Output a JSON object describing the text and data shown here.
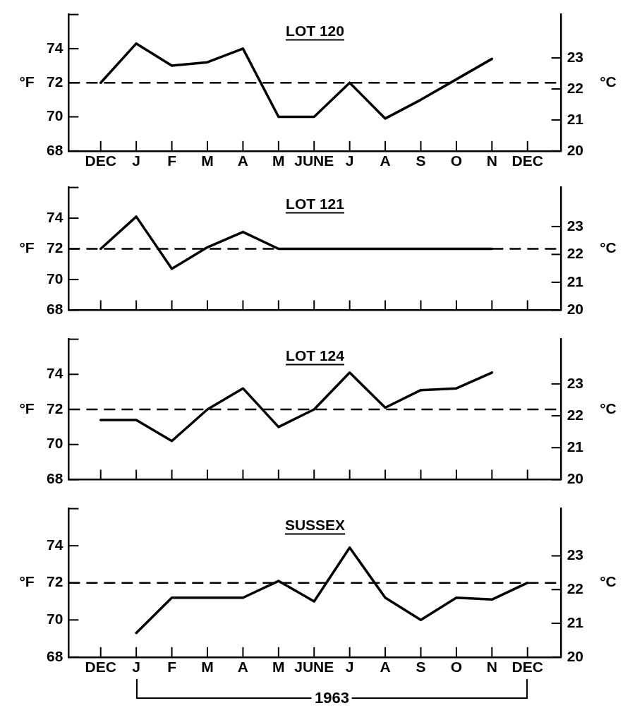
{
  "chart_data": [
    {
      "type": "line",
      "title": "LOT 120",
      "ylabel": "°F",
      "y2label": "°C",
      "categories": [
        "DEC",
        "J",
        "F",
        "M",
        "A",
        "M",
        "JUNE",
        "J",
        "A",
        "S",
        "O",
        "N",
        "DEC"
      ],
      "series": [
        {
          "color": "#000000",
          "values": [
            72,
            74.3,
            73.0,
            73.2,
            74.0,
            70.0,
            70.0,
            72.0,
            69.9,
            71.0,
            72.2,
            73.4,
            null
          ]
        }
      ],
      "ylim": [
        68,
        76
      ],
      "yticks": [
        68,
        70,
        72,
        74
      ],
      "y2lim": [
        20,
        24.4
      ],
      "y2ticks": [
        20,
        21,
        22,
        23
      ],
      "ref_lines": [
        {
          "axis": "y",
          "value": 72,
          "line_style": "dashed",
          "color": "#000000"
        }
      ],
      "marker": "none",
      "line_style": "solid",
      "grid": false,
      "legend": false
    },
    {
      "type": "line",
      "title": "LOT 121",
      "ylabel": "°F",
      "y2label": "°C",
      "categories": [
        null,
        null,
        null,
        null,
        null,
        null,
        null,
        null,
        null,
        null,
        null,
        null,
        null
      ],
      "series": [
        {
          "color": "#000000",
          "values": [
            72,
            74.1,
            70.7,
            72.1,
            73.1,
            72.0,
            72.0,
            72.0,
            72.0,
            72.0,
            72.0,
            72.0,
            null
          ]
        }
      ],
      "ylim": [
        68,
        76
      ],
      "yticks": [
        68,
        70,
        72,
        74
      ],
      "y2lim": [
        20,
        24.4
      ],
      "y2ticks": [
        20,
        21,
        22,
        23
      ],
      "tick_labels": "y",
      "ref_lines": [
        {
          "axis": "y",
          "value": 72,
          "line_style": "dashed",
          "color": "#000000"
        }
      ],
      "marker": "none",
      "line_style": "solid",
      "grid": false,
      "legend": false
    },
    {
      "type": "line",
      "title": "LOT 124",
      "ylabel": "°F",
      "y2label": "°C",
      "categories": [
        null,
        null,
        null,
        null,
        null,
        null,
        null,
        null,
        null,
        null,
        null,
        null,
        null
      ],
      "series": [
        {
          "color": "#000000",
          "values": [
            71.4,
            71.4,
            70.2,
            72.0,
            73.2,
            71.0,
            72.0,
            74.1,
            72.1,
            73.1,
            73.2,
            74.1,
            null
          ]
        }
      ],
      "ylim": [
        68,
        76
      ],
      "yticks": [
        68,
        70,
        72,
        74
      ],
      "y2lim": [
        20,
        24.4
      ],
      "y2ticks": [
        20,
        21,
        22,
        23
      ],
      "tick_labels": "y",
      "ref_lines": [
        {
          "axis": "y",
          "value": 72,
          "line_style": "dashed",
          "color": "#000000"
        }
      ],
      "marker": "none",
      "line_style": "solid",
      "grid": false,
      "legend": false
    },
    {
      "type": "line",
      "title": "SUSSEX",
      "ylabel": "°F",
      "y2label": "°C",
      "categories": [
        "DEC",
        "J",
        "F",
        "M",
        "A",
        "M",
        "JUNE",
        "J",
        "A",
        "S",
        "O",
        "N",
        "DEC"
      ],
      "series": [
        {
          "color": "#000000",
          "values": [
            null,
            69.3,
            71.2,
            71.2,
            71.2,
            72.1,
            71.0,
            73.9,
            71.2,
            70.0,
            71.2,
            71.1,
            72.0
          ]
        }
      ],
      "ylim": [
        68,
        76
      ],
      "yticks": [
        68,
        70,
        72,
        74
      ],
      "y2lim": [
        20,
        24.4
      ],
      "y2ticks": [
        20,
        21,
        22,
        23
      ],
      "ref_lines": [
        {
          "axis": "y",
          "value": 72,
          "line_style": "dashed",
          "color": "#000000"
        }
      ],
      "marker": "none",
      "line_style": "solid",
      "grid": false,
      "legend": false,
      "annotations": [
        "1963"
      ]
    }
  ]
}
